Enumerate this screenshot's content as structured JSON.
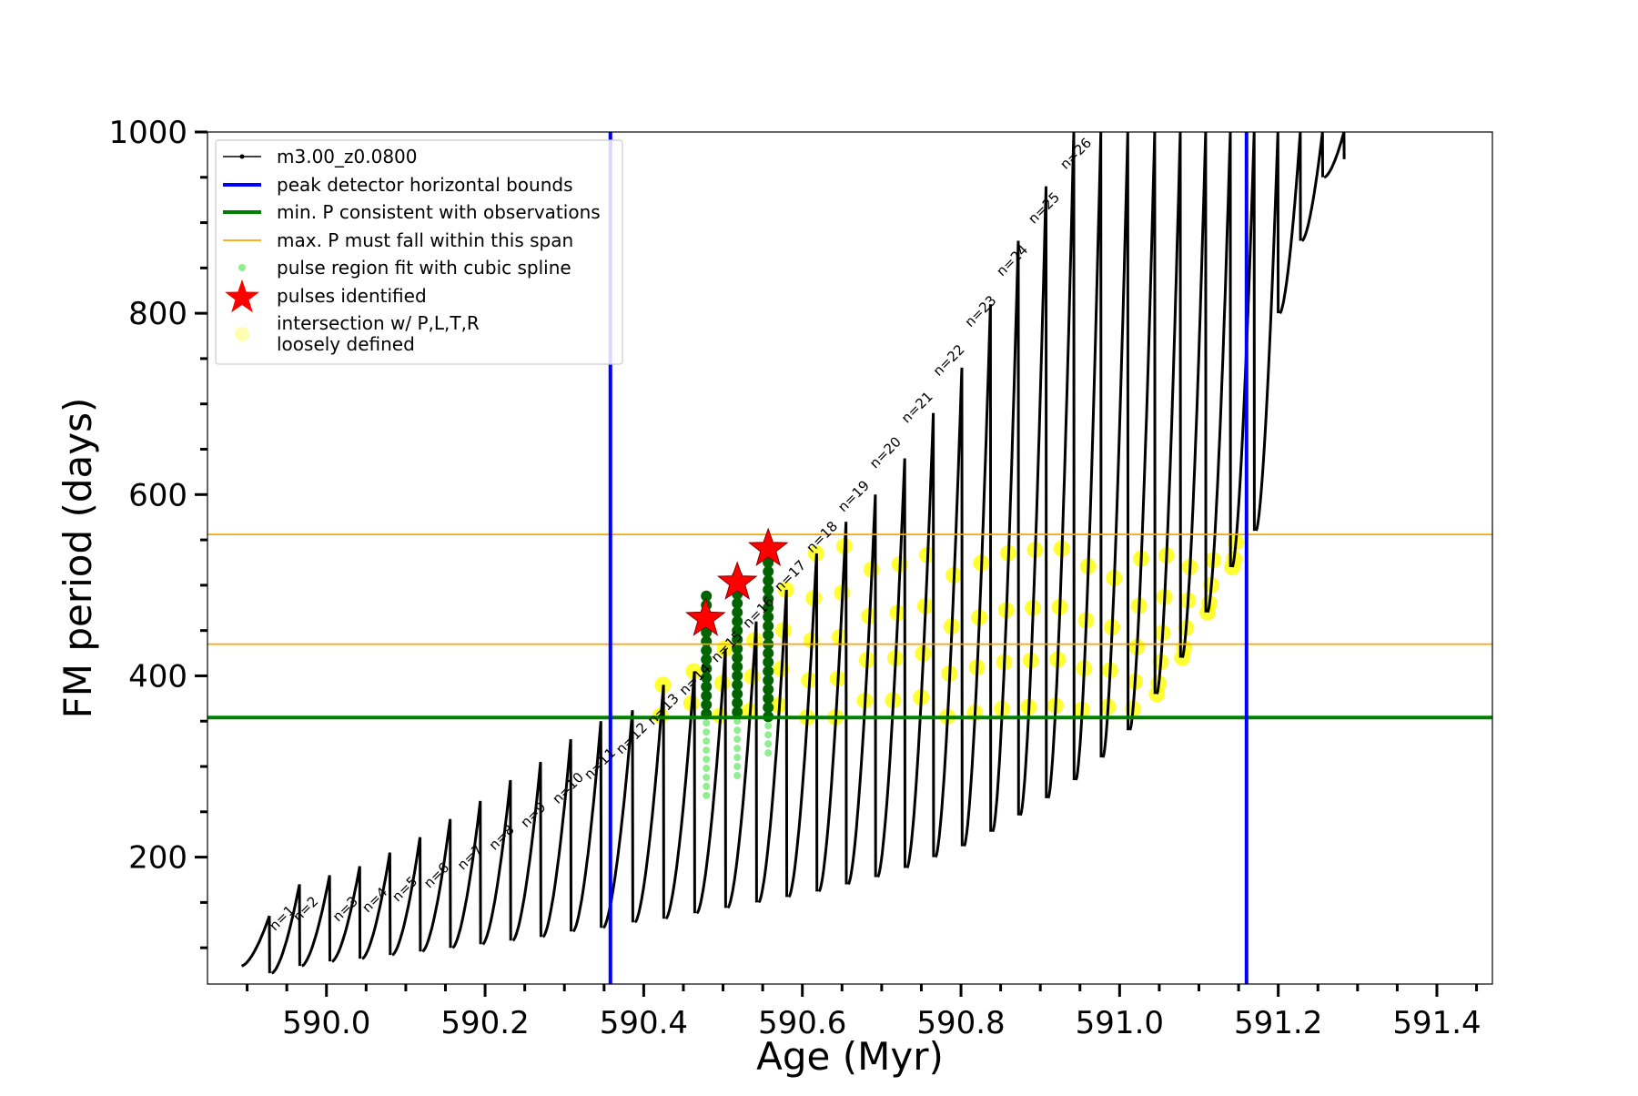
{
  "chart_data": {
    "type": "scatter",
    "xlabel": "Age (Myr)",
    "ylabel": "FM period (days)",
    "xlim": [
      589.85,
      591.47
    ],
    "ylim": [
      60,
      1000
    ],
    "x_ticks": [
      "590.0",
      "590.2",
      "590.4",
      "590.6",
      "590.8",
      "591.0",
      "591.2",
      "591.4"
    ],
    "x_tick_values": [
      590.0,
      590.2,
      590.4,
      590.6,
      590.8,
      591.0,
      591.2,
      591.4
    ],
    "y_ticks": [
      "200",
      "400",
      "600",
      "800",
      "1000"
    ],
    "y_tick_values": [
      200,
      400,
      600,
      800,
      1000
    ],
    "grid": false,
    "legend_placement": "upper-left",
    "legend": [
      {
        "label": "m3.00_z0.0800",
        "style": "black-line-marker",
        "color": "#000000"
      },
      {
        "label": "peak detector horizontal bounds",
        "style": "line",
        "color": "#0000ff"
      },
      {
        "label": "min. P consistent with observations",
        "style": "line",
        "color": "#008000"
      },
      {
        "label": "max. P must fall within this span",
        "style": "thin-line",
        "color": "#ffa500"
      },
      {
        "label": "pulse region fit with cubic spline",
        "style": "dot",
        "color": "#90ee90"
      },
      {
        "label": "pulses identified",
        "style": "star",
        "color": "#ff0000"
      },
      {
        "label": "intersection w/ P,L,T,R\nloosely defined",
        "style": "circle",
        "color": "#ffff66"
      }
    ],
    "vertical_bounds": [
      590.358,
      591.16
    ],
    "min_period": 354,
    "max_period_span": [
      435,
      556
    ],
    "pulses_identified": [
      {
        "age": 590.478,
        "period": 463
      },
      {
        "age": 590.518,
        "period": 503
      },
      {
        "age": 590.557,
        "period": 540
      }
    ],
    "spline_regions": [
      {
        "age": 590.479,
        "p_low": 268,
        "p_high": 495
      },
      {
        "age": 590.518,
        "p_low": 290,
        "p_high": 510
      },
      {
        "age": 590.557,
        "p_low": 315,
        "p_high": 528
      }
    ],
    "pulse_labels": [
      {
        "text": "n=1",
        "age": 589.935,
        "period": 118
      },
      {
        "text": "n=2",
        "age": 589.965,
        "period": 128
      },
      {
        "text": "n=3",
        "age": 590.015,
        "period": 128
      },
      {
        "text": "n=4",
        "age": 590.052,
        "period": 138
      },
      {
        "text": "n=5",
        "age": 590.09,
        "period": 150
      },
      {
        "text": "n=6",
        "age": 590.13,
        "period": 165
      },
      {
        "text": "n=7",
        "age": 590.172,
        "period": 185
      },
      {
        "text": "n=8",
        "age": 590.212,
        "period": 207
      },
      {
        "text": "n=9",
        "age": 590.252,
        "period": 232
      },
      {
        "text": "n=10",
        "age": 590.292,
        "period": 258
      },
      {
        "text": "n=11",
        "age": 590.332,
        "period": 285
      },
      {
        "text": "n=12",
        "age": 590.372,
        "period": 313
      },
      {
        "text": "n=13",
        "age": 590.412,
        "period": 345
      },
      {
        "text": "n=14",
        "age": 590.452,
        "period": 378
      },
      {
        "text": "n=15",
        "age": 590.492,
        "period": 414
      },
      {
        "text": "n=16",
        "age": 590.532,
        "period": 452
      },
      {
        "text": "n=17",
        "age": 590.572,
        "period": 492
      },
      {
        "text": "n=18",
        "age": 590.612,
        "period": 535
      },
      {
        "text": "n=19",
        "age": 590.652,
        "period": 580
      },
      {
        "text": "n=20",
        "age": 590.692,
        "period": 628
      },
      {
        "text": "n=21",
        "age": 590.732,
        "period": 678
      },
      {
        "text": "n=22",
        "age": 590.772,
        "period": 730
      },
      {
        "text": "n=23",
        "age": 590.812,
        "period": 784
      },
      {
        "text": "n=24",
        "age": 590.852,
        "period": 840
      },
      {
        "text": "n=25",
        "age": 590.892,
        "period": 898
      },
      {
        "text": "n=26",
        "age": 590.932,
        "period": 958
      }
    ],
    "series": [
      {
        "name": "m3.00_z0.0800",
        "color": "#000000",
        "cycle_starts": [
          589.893,
          589.931,
          589.969,
          590.007,
          590.045,
          590.083,
          590.121,
          590.159,
          590.197,
          590.235,
          590.273,
          590.311,
          590.349,
          590.389,
          590.428,
          590.467,
          590.506,
          590.545,
          590.583,
          590.621,
          590.658,
          590.695,
          590.732,
          590.768,
          590.804,
          590.84,
          590.875,
          590.91,
          590.945,
          590.979,
          591.013,
          591.047,
          591.079,
          591.111,
          591.142,
          591.172,
          591.202,
          591.23,
          591.258,
          591.285
        ],
        "cycle_peaks": [
          135,
          170,
          180,
          190,
          205,
          222,
          242,
          262,
          285,
          305,
          330,
          350,
          362,
          390,
          405,
          430,
          460,
          495,
          535,
          570,
          600,
          640,
          690,
          740,
          810,
          880,
          940,
          1000,
          1000,
          1000,
          1000,
          1000,
          1000,
          1000,
          1000,
          1000,
          1000,
          1000,
          1000,
          1000
        ],
        "cycle_mins": [
          80,
          72,
          80,
          85,
          88,
          92,
          96,
          100,
          104,
          108,
          112,
          118,
          122,
          128,
          132,
          138,
          144,
          150,
          156,
          162,
          170,
          178,
          188,
          200,
          212,
          228,
          246,
          265,
          285,
          310,
          340,
          380,
          420,
          470,
          520,
          560,
          800,
          880,
          950,
          970
        ]
      }
    ]
  }
}
